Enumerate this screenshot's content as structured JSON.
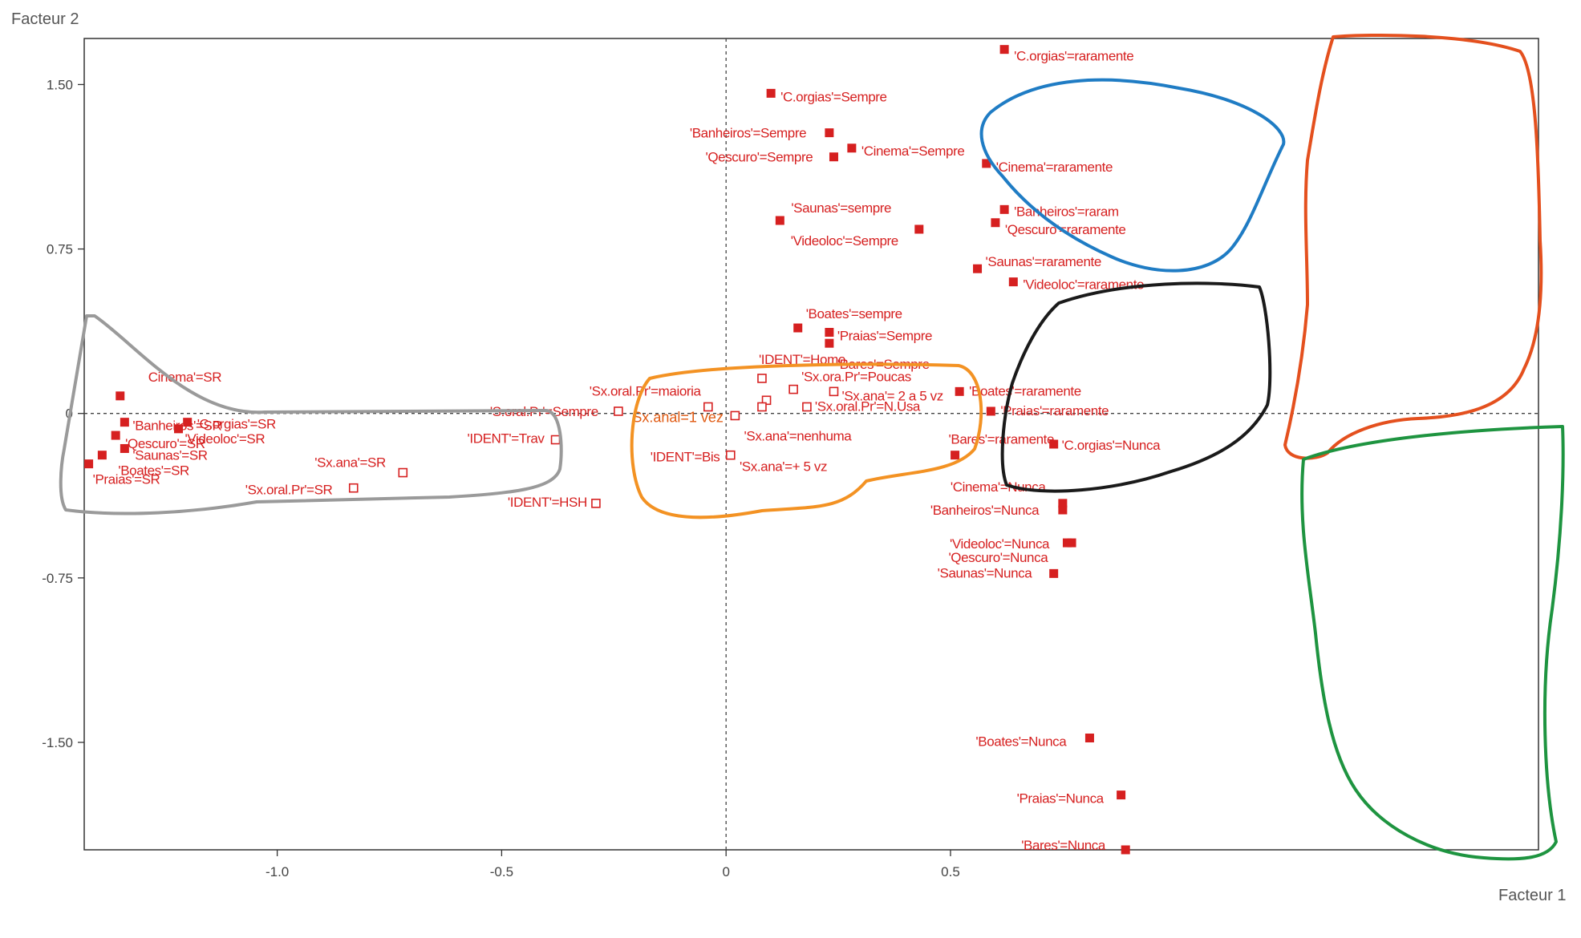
{
  "chart_data": {
    "type": "scatter",
    "title": "",
    "xlabel": "Facteur 1",
    "ylabel": "Facteur 2",
    "xlim": [
      -1.43,
      1.81
    ],
    "ylim": [
      -1.99,
      1.71
    ],
    "x_ticks": [
      {
        "v": -1.0,
        "label": "-1.0"
      },
      {
        "v": -0.5,
        "label": "-0.5"
      },
      {
        "v": 0,
        "label": "0"
      },
      {
        "v": 0.5,
        "label": "0.5"
      }
    ],
    "y_ticks": [
      {
        "v": 1.5,
        "label": "1.50"
      },
      {
        "v": 0.75,
        "label": "0.75"
      },
      {
        "v": 0,
        "label": "0"
      },
      {
        "v": -0.75,
        "label": "-0.75"
      },
      {
        "v": -1.5,
        "label": "-1.50"
      }
    ],
    "grid": false,
    "zero_lines": true,
    "point_color": "#d62020",
    "points": [
      {
        "label": "Cinema'=SR",
        "x": -1.35,
        "y": 0.08,
        "marker": "filled"
      },
      {
        "label": "'Banheiros'=SR",
        "x": -1.34,
        "y": -0.04,
        "marker": "filled"
      },
      {
        "label": "'Qescuro'=SR",
        "x": -1.36,
        "y": -0.1,
        "marker": "filled"
      },
      {
        "label": "'C.orgias'=SR",
        "x": -1.2,
        "y": -0.04,
        "marker": "filled"
      },
      {
        "label": "'Videoloc'=SR",
        "x": -1.22,
        "y": -0.07,
        "marker": "filled"
      },
      {
        "label": "'Saunas'=SR",
        "x": -1.34,
        "y": -0.16,
        "marker": "filled"
      },
      {
        "label": "'Boates'=SR",
        "x": -1.39,
        "y": -0.19,
        "marker": "filled"
      },
      {
        "label": "'Praias'=SR",
        "x": -1.42,
        "y": -0.23,
        "marker": "filled"
      },
      {
        "label": "'Sx.ana'=SR",
        "x": -0.72,
        "y": -0.27,
        "marker": "open"
      },
      {
        "label": "'Sx.oral.Pr'=SR",
        "x": -0.83,
        "y": -0.34,
        "marker": "open"
      },
      {
        "label": "'Sx.oral.Pr'=maioria",
        "x": -0.04,
        "y": 0.03,
        "marker": "open"
      },
      {
        "label": "'S.oral.Pr'=Sempre",
        "x": -0.24,
        "y": 0.01,
        "marker": "open"
      },
      {
        "label": "'IDENT'=Trav",
        "x": -0.38,
        "y": -0.12,
        "marker": "open"
      },
      {
        "label": "'IDENT'=Bis",
        "x": 0.01,
        "y": -0.19,
        "marker": "open"
      },
      {
        "label": "'IDENT'=HSH",
        "x": -0.29,
        "y": -0.41,
        "marker": "open"
      },
      {
        "label": "'C.orgias'=Sempre",
        "x": 0.1,
        "y": 1.46,
        "marker": "filled"
      },
      {
        "label": "'Banheiros'=Sempre",
        "x": 0.23,
        "y": 1.28,
        "marker": "filled"
      },
      {
        "label": "'Cinema'=Sempre",
        "x": 0.28,
        "y": 1.21,
        "marker": "filled"
      },
      {
        "label": "'Qescuro'=Sempre",
        "x": 0.24,
        "y": 1.17,
        "marker": "filled"
      },
      {
        "label": "'Saunas'=sempre",
        "x": 0.12,
        "y": 0.88,
        "marker": "filled"
      },
      {
        "label": "'Videoloc'=Sempre",
        "x": 0.43,
        "y": 0.84,
        "marker": "filled"
      },
      {
        "label": "'Boates'=sempre",
        "x": 0.16,
        "y": 0.39,
        "marker": "filled"
      },
      {
        "label": "'Praias'=Sempre",
        "x": 0.23,
        "y": 0.37,
        "marker": "filled"
      },
      {
        "label": "'Bares'=Sempre",
        "x": 0.23,
        "y": 0.32,
        "marker": "filled"
      },
      {
        "label": "'IDENT'=Homo",
        "x": 0.08,
        "y": 0.16,
        "marker": "open"
      },
      {
        "label": "'Sx.ora.Pr'=Poucas",
        "x": 0.15,
        "y": 0.11,
        "marker": "open"
      },
      {
        "label": "'Sx.ana'= 2 a 5 vz",
        "x": 0.24,
        "y": 0.1,
        "marker": "open"
      },
      {
        "label": "'Sx.oral.Pr'=N.Usa",
        "x": 0.18,
        "y": 0.03,
        "marker": "open"
      },
      {
        "label": "Sx.anal=1 vez",
        "x": 0.02,
        "y": -0.01,
        "marker": "open"
      },
      {
        "label": "'Sx.ana'=nenhuma",
        "x": 0.09,
        "y": 0.06,
        "marker": "open"
      },
      {
        "label": "'Sx.ana'=+ 5 vz",
        "x": 0.08,
        "y": 0.03,
        "marker": "open"
      },
      {
        "label": "'C.orgias'=raramente",
        "x": 0.62,
        "y": 1.66,
        "marker": "filled"
      },
      {
        "label": "'Cinema'=raramente",
        "x": 0.58,
        "y": 1.14,
        "marker": "filled"
      },
      {
        "label": "'Banheiros'=raram",
        "x": 0.62,
        "y": 0.93,
        "marker": "filled"
      },
      {
        "label": "'Qescuro'=raramente",
        "x": 0.6,
        "y": 0.87,
        "marker": "filled"
      },
      {
        "label": "'Saunas'=raramente",
        "x": 0.56,
        "y": 0.66,
        "marker": "filled"
      },
      {
        "label": "'Videoloc'=raramente",
        "x": 0.64,
        "y": 0.6,
        "marker": "filled"
      },
      {
        "label": "'Boates'=raramente",
        "x": 0.52,
        "y": 0.1,
        "marker": "filled"
      },
      {
        "label": "'Praias'=raramente",
        "x": 0.59,
        "y": 0.01,
        "marker": "filled"
      },
      {
        "label": "'Bares'=raramente",
        "x": 0.51,
        "y": -0.19,
        "marker": "filled"
      },
      {
        "label": "'C.orgias'=Nunca",
        "x": 0.73,
        "y": -0.14,
        "marker": "filled"
      },
      {
        "label": "'Cinema'=Nunca",
        "x": 0.75,
        "y": -0.41,
        "marker": "filled"
      },
      {
        "label": "'Banheiros'=Nunca",
        "x": 0.75,
        "y": -0.44,
        "marker": "filled"
      },
      {
        "label": "'Videoloc'=Nunca",
        "x": 0.77,
        "y": -0.59,
        "marker": "filled"
      },
      {
        "label": "'Qescuro'=Nunca",
        "x": 0.76,
        "y": -0.59,
        "marker": "filled"
      },
      {
        "label": "'Saunas'=Nunca",
        "x": 0.73,
        "y": -0.73,
        "marker": "filled"
      },
      {
        "label": "'Boates'=Nunca",
        "x": 0.81,
        "y": -1.48,
        "marker": "filled"
      },
      {
        "label": "'Praias'=Nunca",
        "x": 0.88,
        "y": -1.74,
        "marker": "filled"
      },
      {
        "label": "'Bares'=Nunca",
        "x": 0.89,
        "y": -1.99,
        "marker": "filled"
      }
    ],
    "groups": [
      {
        "color": "#9a9a9a"
      },
      {
        "color": "#f39223"
      },
      {
        "color": "#1f7cc4"
      },
      {
        "color": "#1a1a1a"
      },
      {
        "color": "#e4501e"
      },
      {
        "color": "#1e9440"
      }
    ]
  }
}
